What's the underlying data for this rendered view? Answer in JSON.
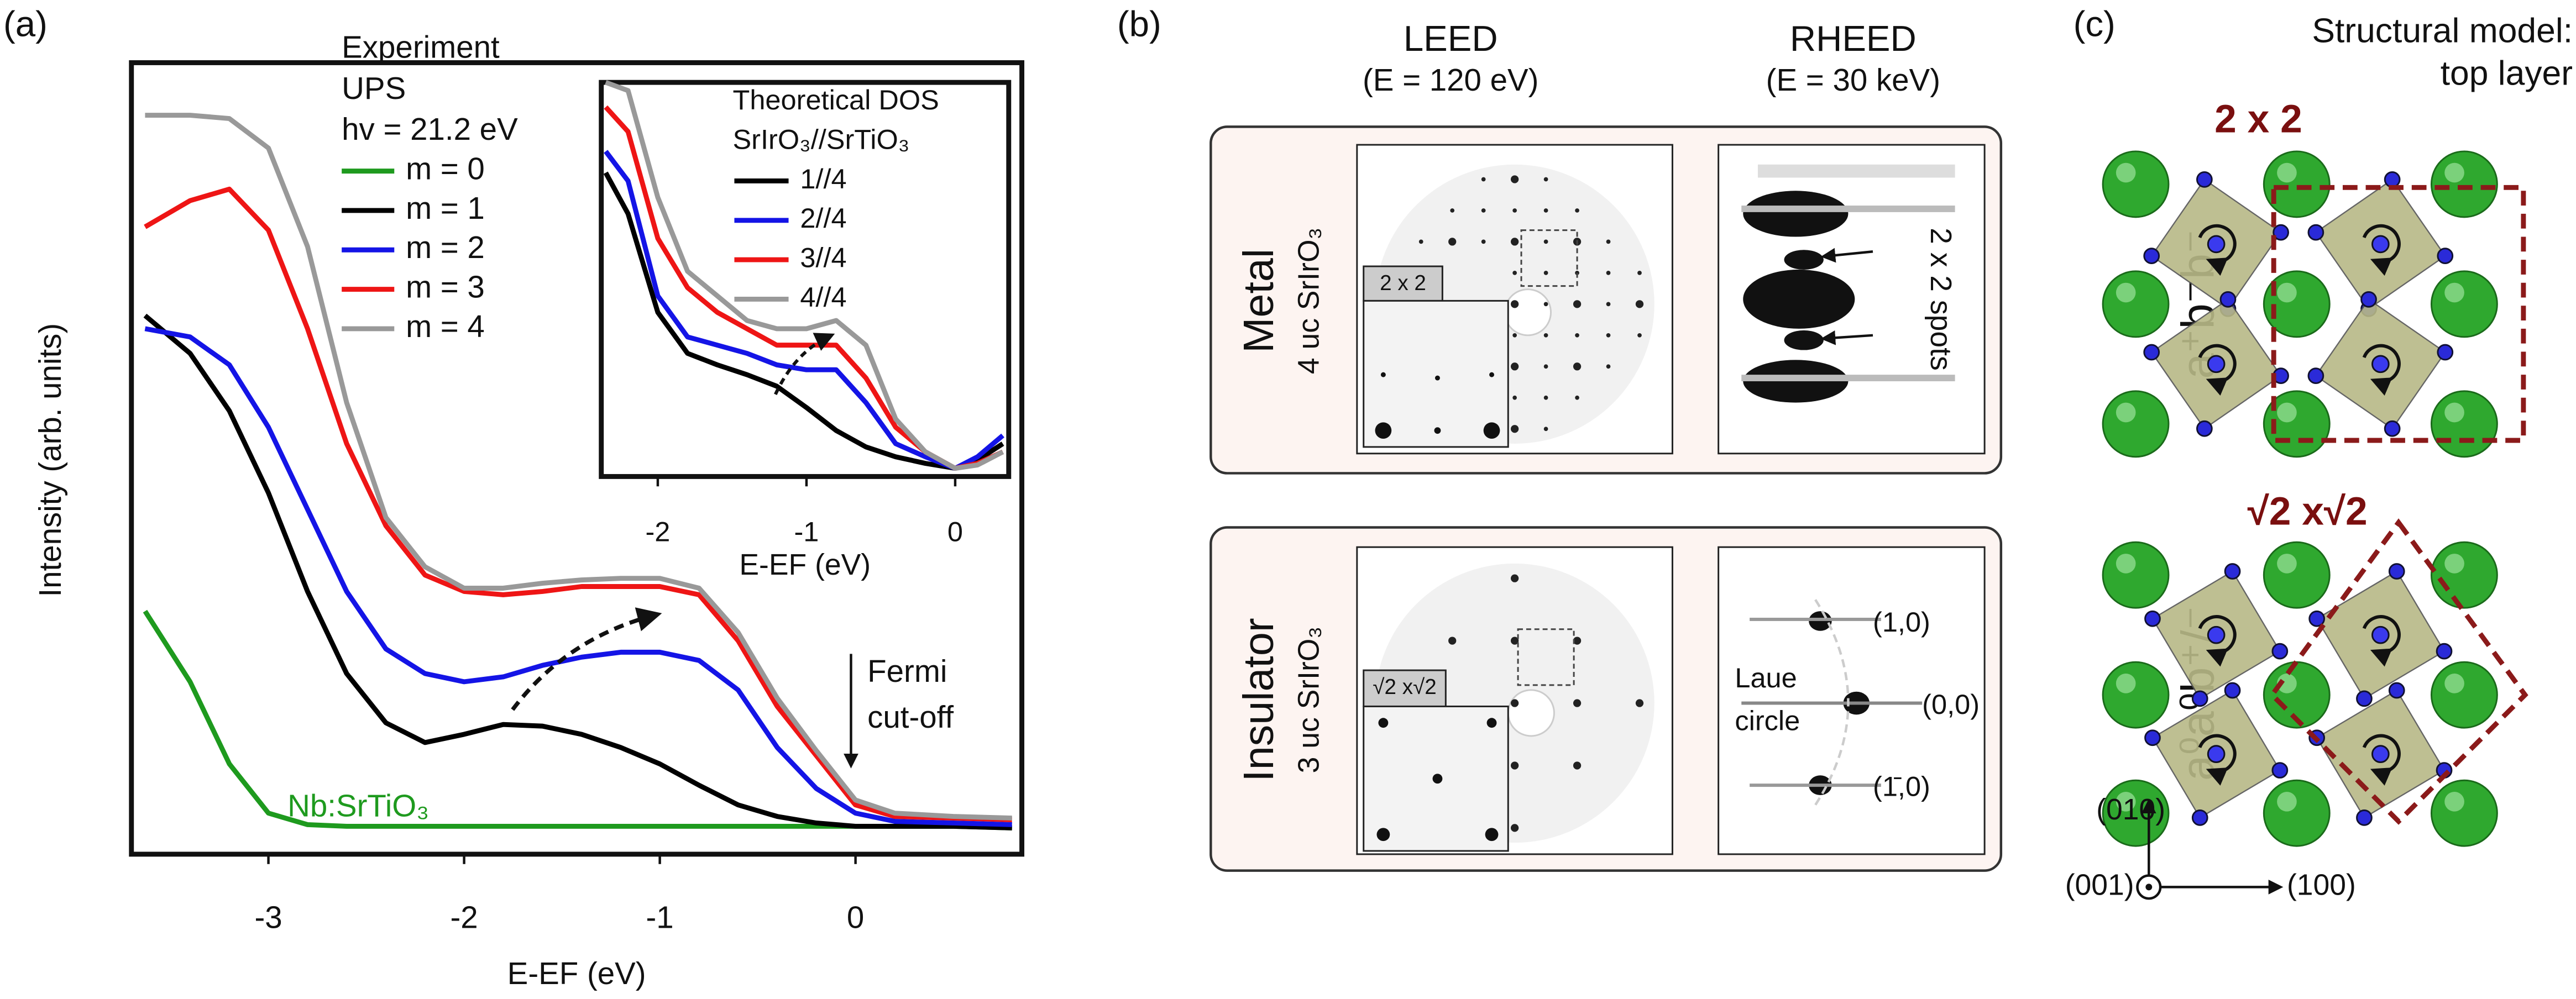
{
  "panel_labels": [
    "(a)",
    "(b)",
    "(c)"
  ],
  "chart_data": [
    {
      "type": "line",
      "xlabel": "E-EF (eV)",
      "ylabel": "Intensity (arb. units)",
      "legend_title": [
        "Experiment",
        "UPS",
        "hv = 21.2 eV"
      ],
      "annotations": [
        "Nb:SrTiO₃",
        "Fermi",
        "cut-off"
      ],
      "xlim": [
        -3.7,
        0.85
      ],
      "xticks": [
        -3,
        -2,
        -1,
        0
      ],
      "ylim": [
        0,
        482
      ],
      "x": [
        -3.63,
        -3.4,
        -3.2,
        -3.0,
        -2.8,
        -2.6,
        -2.4,
        -2.2,
        -2.0,
        -1.8,
        -1.6,
        -1.4,
        -1.2,
        -1.0,
        -0.8,
        -0.6,
        -0.4,
        -0.2,
        0,
        0.2,
        0.5,
        0.8
      ],
      "series": [
        {
          "name": "m = 0",
          "color": "#1e9a1e",
          "values": [
            148,
            105,
            55,
            25,
            18,
            17,
            17,
            17,
            17,
            17,
            17,
            17,
            17,
            17,
            17,
            17,
            17,
            17,
            17,
            17,
            17,
            16
          ]
        },
        {
          "name": "m = 1",
          "color": "#000000",
          "values": [
            328,
            305,
            270,
            220,
            160,
            110,
            80,
            68,
            73,
            79,
            78,
            73,
            65,
            55,
            42,
            30,
            23,
            19,
            17,
            17,
            17,
            16
          ]
        },
        {
          "name": "m = 2",
          "color": "#1414e6",
          "values": [
            320,
            315,
            298,
            260,
            210,
            160,
            125,
            110,
            105,
            108,
            115,
            120,
            123,
            123,
            118,
            100,
            65,
            40,
            25,
            20,
            19,
            18
          ]
        },
        {
          "name": "m = 3",
          "color": "#ee1515",
          "values": [
            382,
            398,
            405,
            380,
            320,
            250,
            200,
            170,
            160,
            158,
            160,
            163,
            163,
            163,
            158,
            130,
            90,
            60,
            30,
            23,
            22,
            21
          ]
        },
        {
          "name": "m = 4",
          "color": "#999999",
          "values": [
            450,
            450,
            448,
            430,
            370,
            275,
            205,
            175,
            162,
            162,
            165,
            167,
            168,
            168,
            162,
            135,
            95,
            63,
            33,
            25,
            23,
            22
          ]
        }
      ]
    },
    {
      "type": "line",
      "xlabel": "E-EF (eV)",
      "legend_title": [
        "Theoretical DOS",
        "SrIrO₃//SrTiO₃"
      ],
      "xlim": [
        -2.38,
        0.36
      ],
      "xticks": [
        -2,
        -1,
        0
      ],
      "ylim": [
        0,
        240
      ],
      "x": [
        -2.35,
        -2.2,
        -2.0,
        -1.8,
        -1.6,
        -1.4,
        -1.2,
        -1.0,
        -0.8,
        -0.6,
        -0.4,
        -0.2,
        0,
        0.15,
        0.32
      ],
      "series": [
        {
          "name": "1//4",
          "color": "#000000",
          "values": [
            185,
            160,
            100,
            75,
            68,
            62,
            55,
            42,
            28,
            18,
            12,
            8,
            5,
            10,
            20
          ]
        },
        {
          "name": "2//4",
          "color": "#1414e6",
          "values": [
            198,
            180,
            110,
            85,
            80,
            75,
            68,
            65,
            65,
            45,
            20,
            12,
            5,
            12,
            25
          ]
        },
        {
          "name": "3//4",
          "color": "#ee1515",
          "values": [
            225,
            210,
            145,
            115,
            100,
            90,
            80,
            80,
            80,
            60,
            30,
            15,
            5,
            8,
            15
          ]
        },
        {
          "name": "4//4",
          "color": "#999999",
          "values": [
            240,
            235,
            170,
            125,
            110,
            95,
            90,
            90,
            95,
            80,
            35,
            15,
            5,
            7,
            15
          ]
        }
      ]
    }
  ],
  "panel_b": {
    "leed": "LEED",
    "leed_energy": "(E = 120 eV)",
    "rheed": "RHEED",
    "rheed_energy": "(E = 30 keV)",
    "metal": {
      "label": "Metal",
      "sample": "4 uc SrIrO₃",
      "inset": "2 x 2",
      "spots": "2 x 2  spots"
    },
    "insulator": {
      "label": "Insulator",
      "sample": "3 uc SrIrO₃",
      "inset": "√2 x√2",
      "spots": [
        "(1,0)",
        "(0,0)",
        "(1̄,0)"
      ],
      "laue": [
        "Laue",
        "circle"
      ]
    }
  },
  "panel_c": {
    "title": [
      "Structural model:",
      "top layer"
    ],
    "top": {
      "cell": "2 x 2",
      "tilt": "a⁺b⁻b⁻"
    },
    "bottom": {
      "cell": "√2 x√2",
      "tilt": "a⁰a⁰b⁺/⁻"
    },
    "axes": [
      "(010)",
      "(001)",
      "(100)"
    ]
  }
}
